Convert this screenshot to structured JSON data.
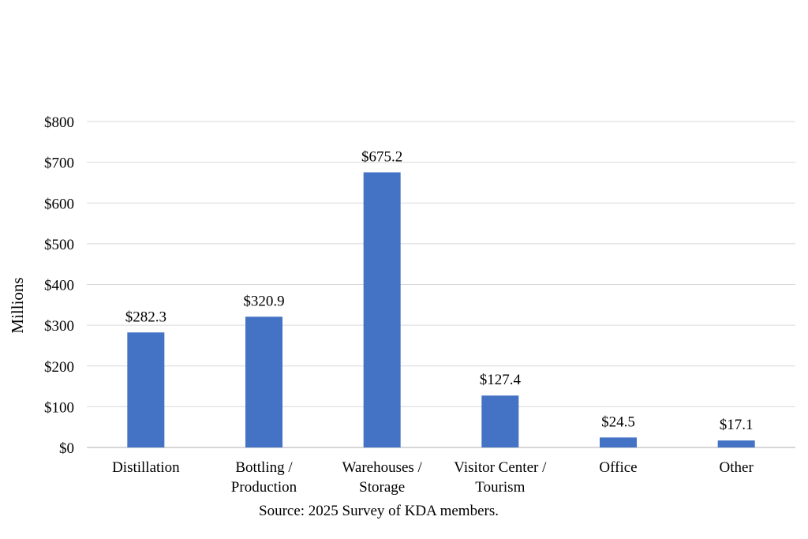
{
  "chart_data": {
    "type": "bar",
    "title": "",
    "xlabel": "",
    "ylabel": "Millions",
    "categories": [
      [
        "Distillation"
      ],
      [
        "Bottling /",
        "Production"
      ],
      [
        "Warehouses /",
        "Storage"
      ],
      [
        "Visitor Center /",
        "Tourism"
      ],
      [
        "Office"
      ],
      [
        "Other"
      ]
    ],
    "values": [
      282.3,
      320.9,
      675.2,
      127.4,
      24.5,
      17.1
    ],
    "value_labels": [
      "$282.3",
      "$320.9",
      "$675.2",
      "$127.4",
      "$24.5",
      "$17.1"
    ],
    "ylim": [
      0,
      800
    ],
    "yticks": [
      0,
      100,
      200,
      300,
      400,
      500,
      600,
      700,
      800
    ],
    "ytick_labels": [
      "$0",
      "$100",
      "$200",
      "$300",
      "$400",
      "$500",
      "$600",
      "$700",
      "$800"
    ],
    "grid": true,
    "bar_color": "#4472C4",
    "grid_color": "#D9D9D9"
  },
  "source_note": "Source: 2025 Survey of KDA members."
}
